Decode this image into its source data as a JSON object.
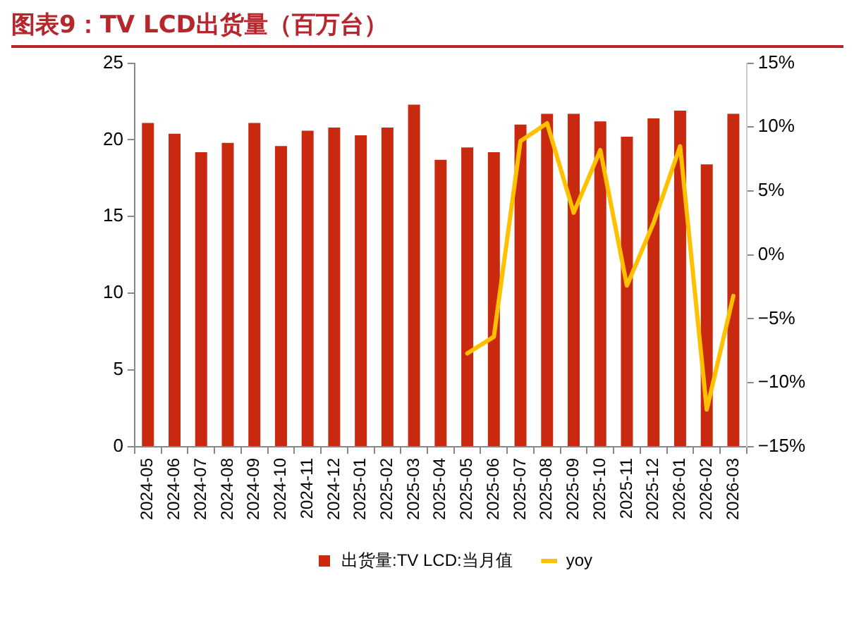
{
  "chart_data": {
    "type": "bar",
    "title": "图表9：TV LCD出货量（百万台）",
    "categories": [
      "2024-05",
      "2024-06",
      "2024-07",
      "2024-08",
      "2024-09",
      "2024-10",
      "2024-11",
      "2024-12",
      "2025-01",
      "2025-02",
      "2025-03",
      "2025-04",
      "2025-05",
      "2025-06",
      "2025-07",
      "2025-08",
      "2025-09",
      "2025-10",
      "2025-11",
      "2025-12",
      "2026-01",
      "2026-02",
      "2026-03"
    ],
    "series": [
      {
        "name": "出货量:TV LCD:当月值",
        "color": "#c8290f",
        "values": [
          21.1,
          20.4,
          19.2,
          19.8,
          21.1,
          19.6,
          20.6,
          20.8,
          20.3,
          20.8,
          22.3,
          18.7,
          19.5,
          19.2,
          21.0,
          21.7,
          21.7,
          21.2,
          20.2,
          21.4,
          21.9,
          18.4,
          21.7
        ]
      },
      {
        "name": "yoy",
        "type": "line",
        "axis": "y2",
        "color": "#ffc000",
        "values": [
          null,
          null,
          null,
          null,
          null,
          null,
          null,
          null,
          null,
          null,
          null,
          null,
          -7.7,
          -6.4,
          8.9,
          10.3,
          3.3,
          8.2,
          -2.4,
          2.5,
          8.5,
          -12.1,
          -3.2
        ]
      }
    ],
    "ylim": [
      0,
      25
    ],
    "yticks": [
      0,
      5,
      10,
      15,
      20,
      25
    ],
    "y2lim": [
      -15,
      15
    ],
    "y2ticks": [
      {
        "value": -15,
        "label": "−15%"
      },
      {
        "value": -10,
        "label": "−10%"
      },
      {
        "value": -5,
        "label": "−5%"
      },
      {
        "value": 0,
        "label": "0%"
      },
      {
        "value": 5,
        "label": "5%"
      },
      {
        "value": 10,
        "label": "10%"
      },
      {
        "value": 15,
        "label": "15%"
      }
    ],
    "grid": false,
    "legend": "bottom",
    "marker": "none",
    "line_style": "solid"
  }
}
